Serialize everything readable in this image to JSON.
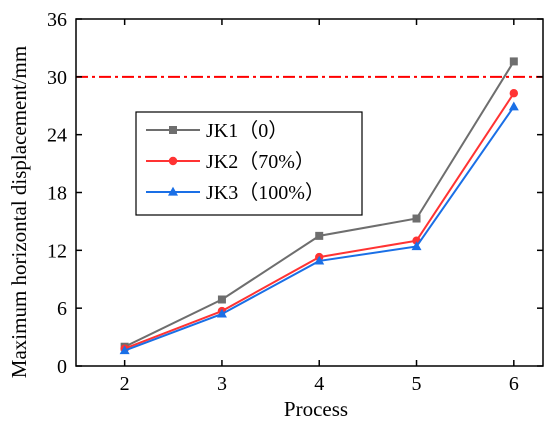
{
  "chart_data": {
    "type": "line",
    "xlabel": "Process",
    "ylabel": "Maximum horizontal displacement/mm",
    "x": [
      2,
      3,
      4,
      5,
      6
    ],
    "xlim": [
      1.5,
      6.3
    ],
    "ylim": [
      0,
      36
    ],
    "xticks": [
      2,
      3,
      4,
      5,
      6
    ],
    "yticks": [
      0,
      6,
      12,
      18,
      24,
      30,
      36
    ],
    "grid": false,
    "legend": "upper-left",
    "reference_line": {
      "y": 30,
      "style": "dash-dot",
      "color": "#ff0000"
    },
    "series": [
      {
        "name": "JK1（0）",
        "color": "#6e6e6e",
        "marker": "square",
        "values": [
          2.0,
          6.9,
          13.5,
          15.3,
          31.6
        ]
      },
      {
        "name": "JK2（70%）",
        "color": "#ff3333",
        "marker": "circle",
        "values": [
          1.8,
          5.7,
          11.3,
          13.0,
          28.3
        ]
      },
      {
        "name": "JK3（100%）",
        "color": "#1a6fe6",
        "marker": "triangle",
        "values": [
          1.6,
          5.4,
          10.9,
          12.4,
          26.9
        ]
      }
    ]
  }
}
